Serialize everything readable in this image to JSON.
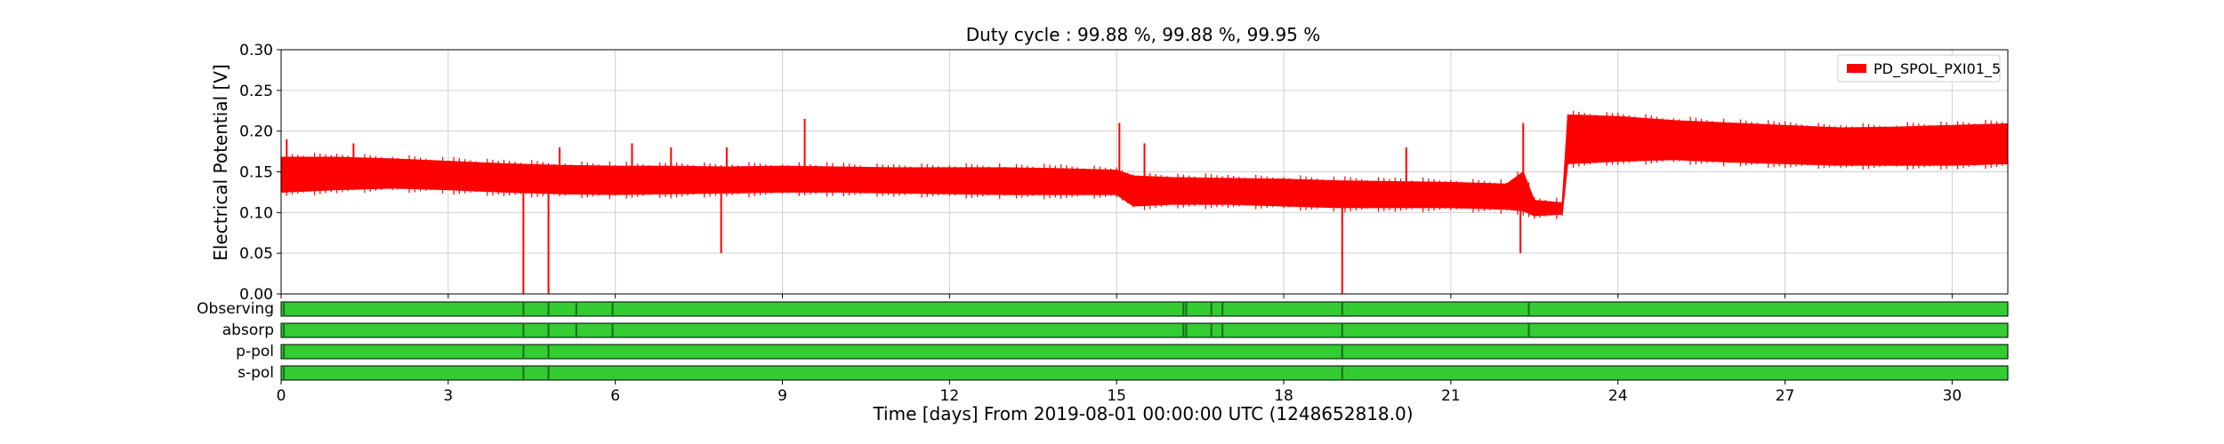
{
  "chart_data": {
    "type": "line",
    "title": "Duty cycle : 99.88 %, 99.88 %, 99.95 %",
    "xlabel": "Time [days] From 2019-08-01 00:00:00 UTC (1248652818.0)",
    "ylabel": "Electrical Potential [V]",
    "xlim": [
      0,
      31
    ],
    "ylim": [
      0,
      0.3
    ],
    "grid": true,
    "legend_position": "top-right",
    "x_ticks": [
      "0",
      "3",
      "6",
      "9",
      "12",
      "15",
      "18",
      "21",
      "24",
      "27",
      "30"
    ],
    "y_ticks": [
      "0.00",
      "0.05",
      "0.10",
      "0.15",
      "0.20",
      "0.25",
      "0.30"
    ],
    "series": [
      {
        "name": "PD_SPOL_PXI01_5",
        "color": "#ff0000",
        "x": [
          0,
          1,
          2,
          3,
          4,
          5,
          6,
          7,
          8,
          9,
          10,
          11,
          12,
          13,
          14,
          15,
          15.3,
          16,
          17,
          18,
          19,
          20,
          21,
          22,
          22.3,
          22.5,
          23.0,
          23.1,
          24,
          25,
          26,
          27,
          28,
          29,
          30,
          31
        ],
        "y_min": [
          0.125,
          0.128,
          0.13,
          0.128,
          0.125,
          0.123,
          0.122,
          0.123,
          0.124,
          0.125,
          0.125,
          0.124,
          0.123,
          0.122,
          0.122,
          0.122,
          0.108,
          0.11,
          0.11,
          0.108,
          0.106,
          0.106,
          0.106,
          0.104,
          0.102,
          0.096,
          0.098,
          0.16,
          0.163,
          0.165,
          0.162,
          0.16,
          0.158,
          0.158,
          0.158,
          0.16
        ],
        "y_max": [
          0.168,
          0.168,
          0.166,
          0.163,
          0.16,
          0.158,
          0.157,
          0.157,
          0.156,
          0.157,
          0.156,
          0.155,
          0.155,
          0.155,
          0.154,
          0.152,
          0.145,
          0.143,
          0.142,
          0.141,
          0.139,
          0.138,
          0.137,
          0.135,
          0.15,
          0.115,
          0.112,
          0.22,
          0.218,
          0.213,
          0.21,
          0.207,
          0.204,
          0.205,
          0.207,
          0.209
        ],
        "spikes": [
          {
            "x": 0.1,
            "y": 0.19
          },
          {
            "x": 1.3,
            "y": 0.185
          },
          {
            "x": 4.35,
            "y": 0.0
          },
          {
            "x": 4.8,
            "y": 0.0
          },
          {
            "x": 5.0,
            "y": 0.18
          },
          {
            "x": 6.3,
            "y": 0.185
          },
          {
            "x": 7.0,
            "y": 0.18
          },
          {
            "x": 7.9,
            "y": 0.05
          },
          {
            "x": 8.0,
            "y": 0.18
          },
          {
            "x": 9.4,
            "y": 0.215
          },
          {
            "x": 15.05,
            "y": 0.21
          },
          {
            "x": 15.5,
            "y": 0.185
          },
          {
            "x": 19.05,
            "y": 0.0
          },
          {
            "x": 20.2,
            "y": 0.18
          },
          {
            "x": 22.25,
            "y": 0.05
          },
          {
            "x": 22.3,
            "y": 0.21
          }
        ]
      }
    ],
    "state_bars": [
      {
        "label": "Observing",
        "color": "#33cc33",
        "gaps": [
          0.05,
          4.35,
          4.8,
          5.3,
          5.95,
          16.2,
          16.25,
          16.7,
          16.9,
          19.05,
          22.4
        ]
      },
      {
        "label": "absorp",
        "color": "#33cc33",
        "gaps": [
          0.05,
          4.35,
          4.8,
          5.3,
          5.95,
          16.2,
          16.25,
          16.7,
          16.9,
          19.05,
          22.4
        ]
      },
      {
        "label": "p-pol",
        "color": "#33cc33",
        "gaps": [
          0.05,
          4.35,
          4.8,
          19.05
        ]
      },
      {
        "label": "s-pol",
        "color": "#33cc33",
        "gaps": [
          0.05,
          4.35,
          4.8,
          19.05
        ]
      }
    ]
  }
}
